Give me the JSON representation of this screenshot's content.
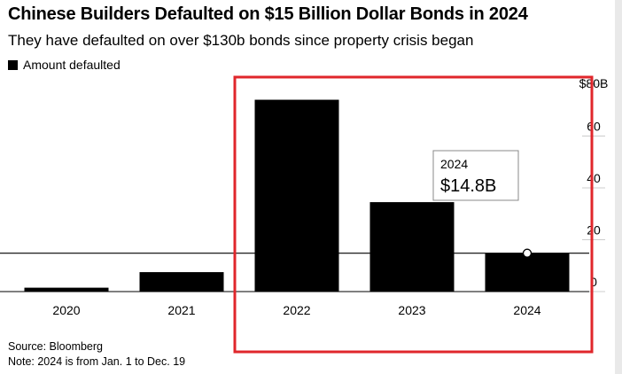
{
  "chart_data": {
    "type": "bar",
    "title": "Chinese Builders Defaulted on $15 Billion Dollar Bonds in 2024",
    "subtitle": "They have defaulted on over $130b bonds since property crisis began",
    "legend": [
      {
        "name": "Amount defaulted",
        "color": "#000000"
      }
    ],
    "categories": [
      "2020",
      "2021",
      "2022",
      "2023",
      "2024"
    ],
    "series": [
      {
        "name": "Amount defaulted",
        "values": [
          1.5,
          7.5,
          74,
          34.5,
          14.8
        ]
      }
    ],
    "ylim": [
      0,
      80
    ],
    "yticks": [
      0,
      20,
      40,
      60,
      80
    ],
    "ytick_labels": [
      "0",
      "20",
      "40",
      "60",
      "$80B"
    ],
    "y_axis_side": "right",
    "reference_line": 14.8,
    "annotation": {
      "category": "2024",
      "year_label": "2024",
      "value_label": "$14.8B"
    },
    "highlight_box": {
      "color": "#e0262b",
      "categories": [
        "2022",
        "2023",
        "2024"
      ]
    }
  },
  "source": "Source: Bloomberg",
  "note": "Note: 2024 is from Jan. 1 to Dec. 19"
}
